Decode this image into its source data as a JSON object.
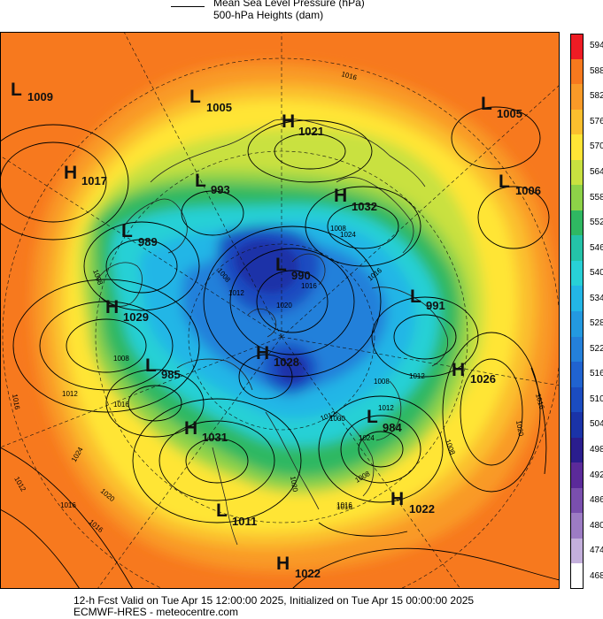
{
  "legend": {
    "mslp_label": "Mean Sea Level Pressure (hPa)",
    "heights_label": "500-hPa Heights (dam)"
  },
  "colorbar": {
    "levels": [
      "594",
      "588",
      "582",
      "576",
      "570",
      "564",
      "558",
      "552",
      "546",
      "540",
      "534",
      "528",
      "522",
      "516",
      "510",
      "504",
      "498",
      "492",
      "486",
      "480",
      "474",
      "468"
    ],
    "colors": [
      "#ee1c24",
      "#f7791e",
      "#f99a28",
      "#fbbf2e",
      "#ffe536",
      "#c9e140",
      "#8dd248",
      "#2fb862",
      "#24c3a8",
      "#28d0d6",
      "#23b6e6",
      "#2399e0",
      "#2480da",
      "#2063d0",
      "#1b4cc0",
      "#1a33a8",
      "#2a1d8e",
      "#5b2a9a",
      "#7a4fae",
      "#9d7cc4",
      "#c4b0dc",
      "#ffffff"
    ]
  },
  "pressure_systems": [
    {
      "type": "L",
      "value": "1009"
    },
    {
      "type": "L",
      "value": "1005"
    },
    {
      "type": "H",
      "value": "1021"
    },
    {
      "type": "L",
      "value": "1005"
    },
    {
      "type": "H",
      "value": "1017"
    },
    {
      "type": "L",
      "value": "993"
    },
    {
      "type": "H",
      "value": "1032"
    },
    {
      "type": "L",
      "value": "1006"
    },
    {
      "type": "L",
      "value": "989"
    },
    {
      "type": "L",
      "value": "990"
    },
    {
      "type": "H",
      "value": "1029"
    },
    {
      "type": "L",
      "value": "991"
    },
    {
      "type": "H",
      "value": "1028"
    },
    {
      "type": "L",
      "value": "985"
    },
    {
      "type": "H",
      "value": "1026"
    },
    {
      "type": "L",
      "value": "984"
    },
    {
      "type": "H",
      "value": "1031"
    },
    {
      "type": "H",
      "value": "1022"
    },
    {
      "type": "L",
      "value": "1011"
    },
    {
      "type": "H",
      "value": "1022"
    }
  ],
  "isobar_labels": [
    "1008",
    "1016",
    "1012",
    "1008",
    "1016",
    "1024",
    "1016",
    "1020",
    "1016",
    "1012",
    "1020",
    "1016",
    "1012",
    "1008",
    "1016",
    "1024",
    "1008",
    "1016",
    "1012",
    "1020",
    "1008",
    "1000",
    "1012",
    "1016",
    "1012",
    "1024",
    "1020",
    "1008",
    "1016",
    "1008",
    "1016"
  ],
  "footer": {
    "line1": "12-h Fcst Valid on Tue Apr 15 12:00:00 2025, Initialized on Tue Apr 15 00:00:00 2025",
    "line2": "ECMWF-HRES  - meteocentre.com"
  }
}
